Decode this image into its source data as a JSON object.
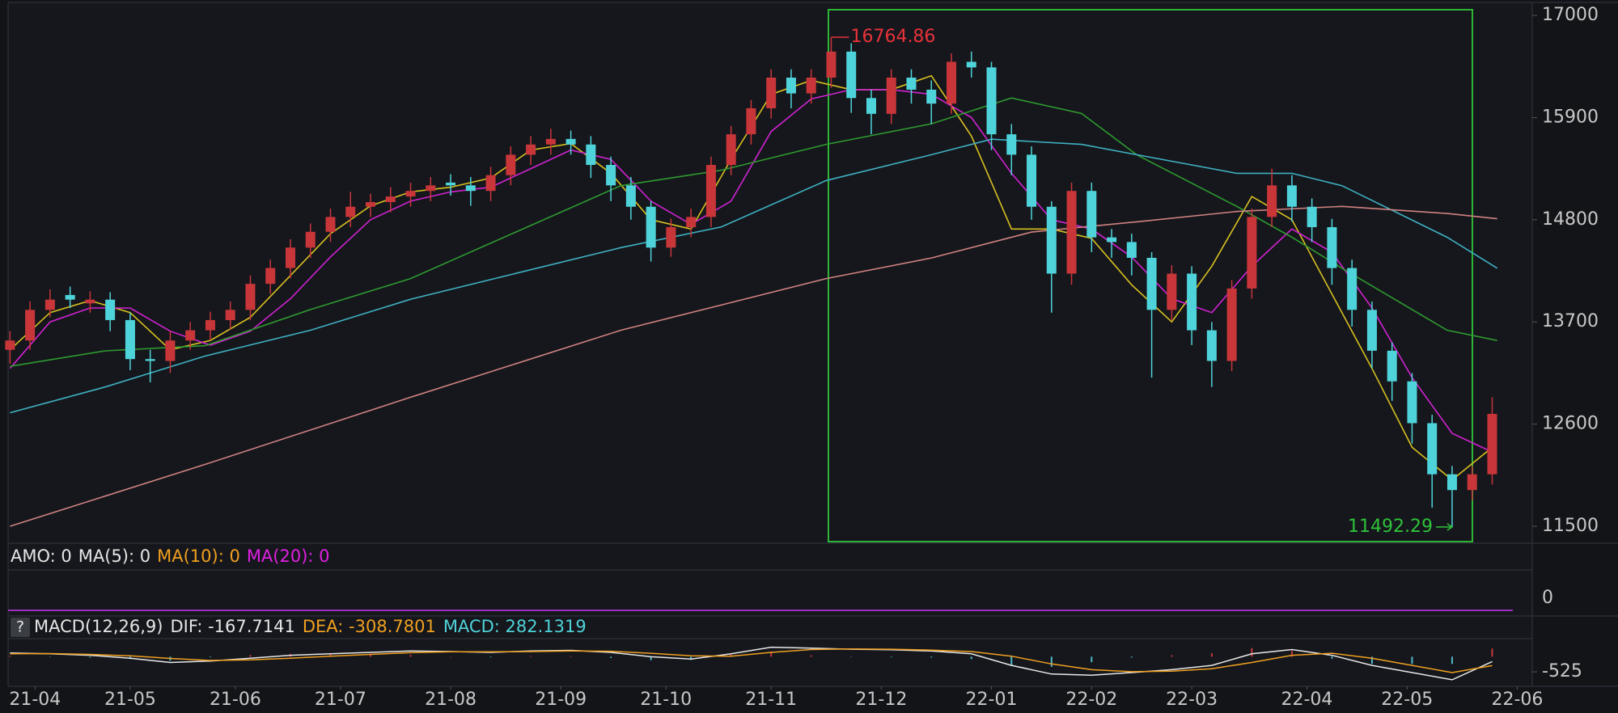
{
  "chart_data": [
    {
      "type": "candlestick",
      "xlim": [
        -2,
        304
      ],
      "xticks": [
        {
          "value": 5,
          "label": "21-04"
        },
        {
          "value": 24,
          "label": "21-05"
        },
        {
          "value": 45,
          "label": "21-06"
        },
        {
          "value": 66,
          "label": "21-07"
        },
        {
          "value": 88,
          "label": "21-08"
        },
        {
          "value": 110,
          "label": "21-09"
        },
        {
          "value": 131,
          "label": "21-10"
        },
        {
          "value": 152,
          "label": "21-11"
        },
        {
          "value": 174,
          "label": "21-12"
        },
        {
          "value": 196,
          "label": "22-01"
        },
        {
          "value": 216,
          "label": "22-02"
        },
        {
          "value": 236,
          "label": "22-03"
        },
        {
          "value": 259,
          "label": "22-04"
        },
        {
          "value": 279,
          "label": "22-05"
        },
        {
          "value": 301,
          "label": "22-06"
        }
      ],
      "ylim": [
        11335,
        17122
      ],
      "yticks": [
        11500,
        12600,
        13700,
        14800,
        15900,
        17000
      ],
      "up_color": "#c8363a",
      "down_color": "#4fd3da",
      "x": [
        0,
        4,
        8,
        12,
        16,
        20,
        24,
        28,
        32,
        36,
        40,
        44,
        48,
        52,
        56,
        60,
        64,
        68,
        72,
        76,
        80,
        84,
        88,
        92,
        96,
        100,
        104,
        108,
        112,
        116,
        120,
        124,
        128,
        132,
        136,
        140,
        144,
        148,
        152,
        156,
        160,
        164,
        168,
        172,
        176,
        180,
        184,
        188,
        192,
        196,
        200,
        204,
        208,
        212,
        216,
        220,
        224,
        228,
        232,
        236,
        240,
        244,
        248,
        252,
        256,
        260,
        264,
        268,
        272,
        276,
        280,
        284,
        288,
        292,
        296
      ],
      "open": [
        13400,
        13500,
        13830,
        13990,
        13900,
        13940,
        13720,
        13300,
        13280,
        13500,
        13610,
        13720,
        13830,
        14110,
        14280,
        14500,
        14670,
        14830,
        14940,
        14990,
        15050,
        15110,
        15200,
        15170,
        15110,
        15280,
        15500,
        15610,
        15670,
        15610,
        15390,
        15170,
        14940,
        14500,
        14720,
        14830,
        15390,
        15720,
        16000,
        16330,
        16160,
        16330,
        16610,
        16110,
        15940,
        16330,
        16200,
        16050,
        16500,
        16440,
        15720,
        15500,
        14940,
        14220,
        15110,
        14610,
        14560,
        14390,
        13830,
        14220,
        13610,
        13280,
        14060,
        14830,
        15170,
        14940,
        14720,
        14280,
        13830,
        13390,
        13060,
        12610,
        12060,
        11890,
        12060
      ],
      "high": [
        13600,
        13920,
        14050,
        14080,
        14030,
        14020,
        13800,
        13400,
        13600,
        13700,
        13810,
        13920,
        14200,
        14370,
        14590,
        14760,
        14920,
        15100,
        15080,
        15150,
        15200,
        15260,
        15290,
        15260,
        15370,
        15590,
        15700,
        15780,
        15760,
        15700,
        15480,
        15260,
        15000,
        14810,
        14920,
        15480,
        15810,
        16090,
        16420,
        16420,
        16420,
        16764.86,
        16700,
        16200,
        16420,
        16420,
        16300,
        16590,
        16610,
        16500,
        15830,
        15590,
        15000,
        15200,
        15200,
        14700,
        14650,
        14450,
        14310,
        14300,
        13700,
        14150,
        14920,
        15350,
        15280,
        15030,
        14810,
        14370,
        13920,
        13480,
        13150,
        12700,
        12150,
        12150,
        12890
      ],
      "low": [
        13250,
        13400,
        13750,
        13850,
        13800,
        13600,
        13180,
        13050,
        13150,
        13400,
        13500,
        13620,
        13720,
        14000,
        14170,
        14390,
        14560,
        14720,
        14830,
        14880,
        14940,
        15000,
        15060,
        14950,
        15000,
        15170,
        15390,
        15500,
        15500,
        15250,
        15000,
        14800,
        14350,
        14400,
        14610,
        14720,
        15280,
        15610,
        15890,
        16000,
        16050,
        16220,
        15950,
        15720,
        15830,
        16050,
        15830,
        15940,
        16330,
        15550,
        15280,
        14800,
        13800,
        14100,
        14450,
        14390,
        14200,
        13100,
        13720,
        13450,
        13000,
        13170,
        13950,
        14720,
        14780,
        14560,
        14100,
        13650,
        13200,
        12850,
        12390,
        11700,
        11492.29,
        11780,
        11950
      ],
      "close": [
        13500,
        13830,
        13940,
        13940,
        13940,
        13720,
        13300,
        13280,
        13500,
        13610,
        13720,
        13830,
        14110,
        14280,
        14500,
        14670,
        14830,
        14940,
        14990,
        15050,
        15110,
        15170,
        15170,
        15110,
        15280,
        15500,
        15610,
        15670,
        15610,
        15390,
        15170,
        14940,
        14500,
        14720,
        14830,
        15390,
        15720,
        16000,
        16330,
        16160,
        16330,
        16610,
        16110,
        15940,
        16330,
        16200,
        16050,
        16500,
        16440,
        15720,
        15500,
        14940,
        14220,
        15110,
        14610,
        14560,
        14390,
        13830,
        14220,
        13610,
        13280,
        14060,
        14830,
        15170,
        14940,
        14720,
        14280,
        13830,
        13390,
        13060,
        12610,
        12060,
        11890,
        12060,
        12710
      ],
      "high_color": "#e8323a",
      "low_color": "#2fc23a",
      "series": [
        {
          "color": "#d8c020",
          "x": [
            0,
            8,
            16,
            24,
            32,
            40,
            48,
            56,
            64,
            72,
            80,
            88,
            96,
            104,
            112,
            120,
            128,
            136,
            144,
            152,
            160,
            168,
            176,
            184,
            192,
            200,
            208,
            216,
            224,
            232,
            240,
            248,
            256,
            264,
            272,
            280,
            288,
            296
          ],
          "values": [
            13400,
            13800,
            13930,
            13800,
            13400,
            13500,
            13750,
            14200,
            14650,
            14950,
            15100,
            15150,
            15250,
            15550,
            15620,
            15300,
            14800,
            14700,
            15450,
            16150,
            16300,
            16200,
            16200,
            16350,
            15700,
            14700,
            14700,
            14600,
            14100,
            13700,
            14300,
            15050,
            14800,
            14000,
            13200,
            12350,
            12000,
            12350
          ]
        },
        {
          "color": "#d022d0",
          "x": [
            0,
            8,
            16,
            24,
            32,
            40,
            48,
            56,
            64,
            72,
            80,
            88,
            96,
            104,
            112,
            120,
            128,
            136,
            144,
            152,
            160,
            168,
            176,
            184,
            192,
            200,
            208,
            216,
            224,
            232,
            240,
            248,
            256,
            264,
            272,
            280,
            288,
            296
          ],
          "values": [
            13200,
            13700,
            13850,
            13850,
            13600,
            13450,
            13600,
            13950,
            14400,
            14800,
            15000,
            15100,
            15150,
            15350,
            15550,
            15450,
            15000,
            14750,
            15000,
            15750,
            16100,
            16200,
            16200,
            16150,
            15900,
            15300,
            14800,
            14700,
            14400,
            13950,
            13800,
            14300,
            14700,
            14450,
            13850,
            13100,
            12500,
            12300
          ]
        },
        {
          "color": "#2f9a30",
          "x": [
            0,
            19,
            39,
            60,
            80,
            101,
            122,
            142,
            163,
            184,
            200,
            214,
            225,
            245,
            256,
            266,
            287,
            297
          ],
          "values": [
            13222,
            13389,
            13444,
            13833,
            14167,
            14667,
            15167,
            15333,
            15611,
            15833,
            16111,
            15944,
            15500,
            14944,
            14611,
            14278,
            13611,
            13500
          ]
        },
        {
          "color": "#3fb0c2",
          "x": [
            0,
            19,
            39,
            60,
            80,
            101,
            122,
            142,
            163,
            184,
            196,
            214,
            225,
            245,
            256,
            266,
            287,
            297
          ],
          "values": [
            12722,
            13000,
            13333,
            13611,
            13944,
            14222,
            14500,
            14722,
            15222,
            15500,
            15667,
            15611,
            15500,
            15300,
            15300,
            15167,
            14611,
            14278
          ]
        },
        {
          "color": "#d08282",
          "x": [
            0,
            39,
            80,
            122,
            163,
            184,
            204,
            225,
            245,
            266,
            287,
            297
          ],
          "values": [
            11500,
            12167,
            12889,
            13611,
            14167,
            14389,
            14667,
            14778,
            14889,
            14944,
            14867,
            14811
          ]
        }
      ]
    },
    {
      "type": "amount",
      "labels": [
        {
          "text": "AMO: 0",
          "color": "#e6e6e6"
        },
        {
          "text": "MA(5): 0",
          "color": "#e6e6e6"
        },
        {
          "text": "MA(10): 0",
          "color": "#f0a020"
        },
        {
          "text": "MA(20): 0",
          "color": "#e020e0"
        }
      ],
      "yticks": [
        0
      ],
      "line_color": "#a030c0"
    },
    {
      "type": "macd",
      "help": "?",
      "labels": [
        {
          "text": "MACD(12,26,9)",
          "color": "#e6e6e6"
        },
        {
          "text": "DIF: -167.7141",
          "color": "#e6e6e6"
        },
        {
          "text": "DEA: -308.7801",
          "color": "#f0a020"
        },
        {
          "text": "MACD: 282.1319",
          "color": "#4fd3da"
        }
      ],
      "ylim": [
        -1000,
        600
      ],
      "yticks": [
        -525
      ],
      "x": [
        0,
        8,
        16,
        24,
        32,
        40,
        48,
        56,
        64,
        72,
        80,
        88,
        96,
        104,
        112,
        120,
        128,
        136,
        144,
        152,
        160,
        168,
        176,
        184,
        192,
        200,
        208,
        216,
        224,
        232,
        240,
        248,
        256,
        264,
        272,
        280,
        288,
        296
      ],
      "histogram": [
        30,
        -10,
        -30,
        -80,
        -140,
        -20,
        60,
        100,
        80,
        70,
        60,
        10,
        -20,
        20,
        20,
        -40,
        -120,
        -110,
        80,
        180,
        50,
        -10,
        -20,
        -30,
        -80,
        -320,
        -350,
        -190,
        -30,
        50,
        120,
        300,
        200,
        -70,
        -250,
        -250,
        -250,
        282
      ],
      "up_color": "#c8363a",
      "down_color": "#4fb8c8",
      "series": [
        {
          "color": "#e8e8e8",
          "values": [
            130,
            100,
            50,
            -50,
            -200,
            -150,
            -50,
            50,
            100,
            150,
            200,
            180,
            150,
            200,
            220,
            150,
            0,
            -80,
            100,
            330,
            300,
            260,
            240,
            200,
            100,
            -300,
            -600,
            -640,
            -550,
            -450,
            -300,
            100,
            250,
            50,
            -300,
            -550,
            -800,
            -168
          ]
        },
        {
          "color": "#f0a020",
          "values": [
            100,
            110,
            80,
            30,
            -60,
            -130,
            -110,
            -50,
            20,
            80,
            140,
            170,
            170,
            180,
            200,
            190,
            120,
            30,
            20,
            150,
            250,
            270,
            260,
            230,
            180,
            20,
            -250,
            -450,
            -520,
            -500,
            -420,
            -200,
            50,
            120,
            -50,
            -300,
            -550,
            -309
          ]
        }
      ]
    }
  ]
}
